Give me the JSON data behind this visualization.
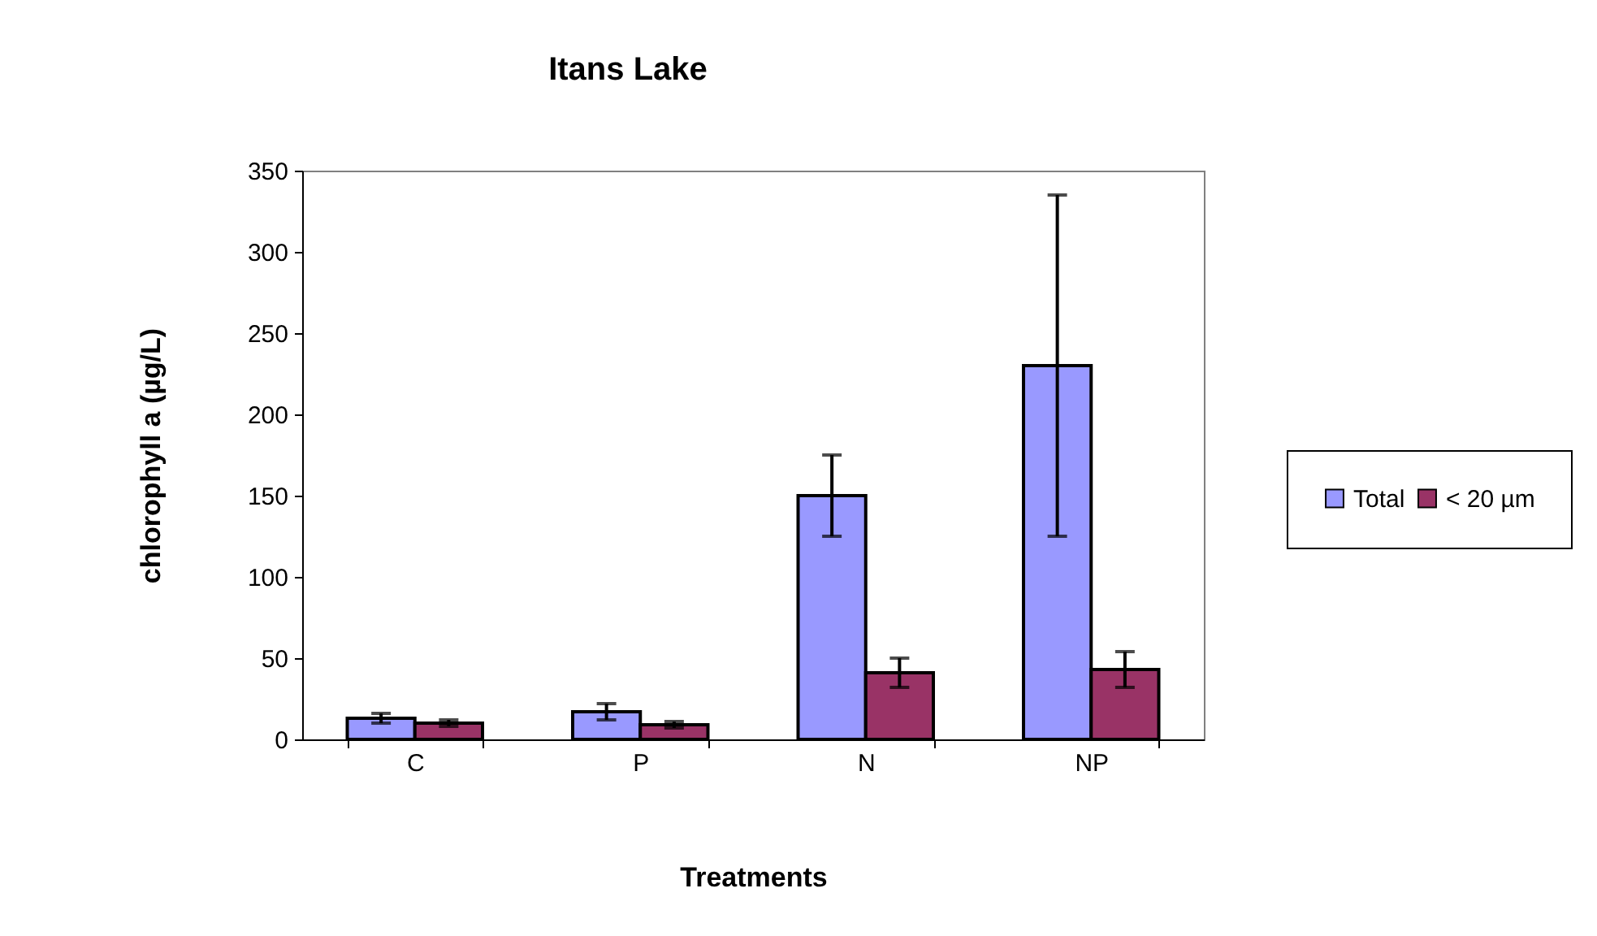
{
  "chart_data": {
    "type": "bar",
    "title": "Itans Lake",
    "xlabel": "Treatments",
    "ylabel": "chlorophyll a (µg/L)",
    "categories": [
      "C",
      "P",
      "N",
      "NP"
    ],
    "series": [
      {
        "name": "Total",
        "color": "#9999ff",
        "values": [
          13,
          17,
          150,
          230
        ],
        "errors": [
          3,
          5,
          25,
          105
        ]
      },
      {
        "name": "< 20 µm",
        "color": "#993366",
        "values": [
          10,
          9,
          41,
          43
        ],
        "errors": [
          2,
          2,
          9,
          11
        ]
      }
    ],
    "ylim": [
      0,
      350
    ],
    "yticks": [
      0,
      50,
      100,
      150,
      200,
      250,
      300,
      350
    ],
    "grid": false,
    "legend": "right"
  }
}
